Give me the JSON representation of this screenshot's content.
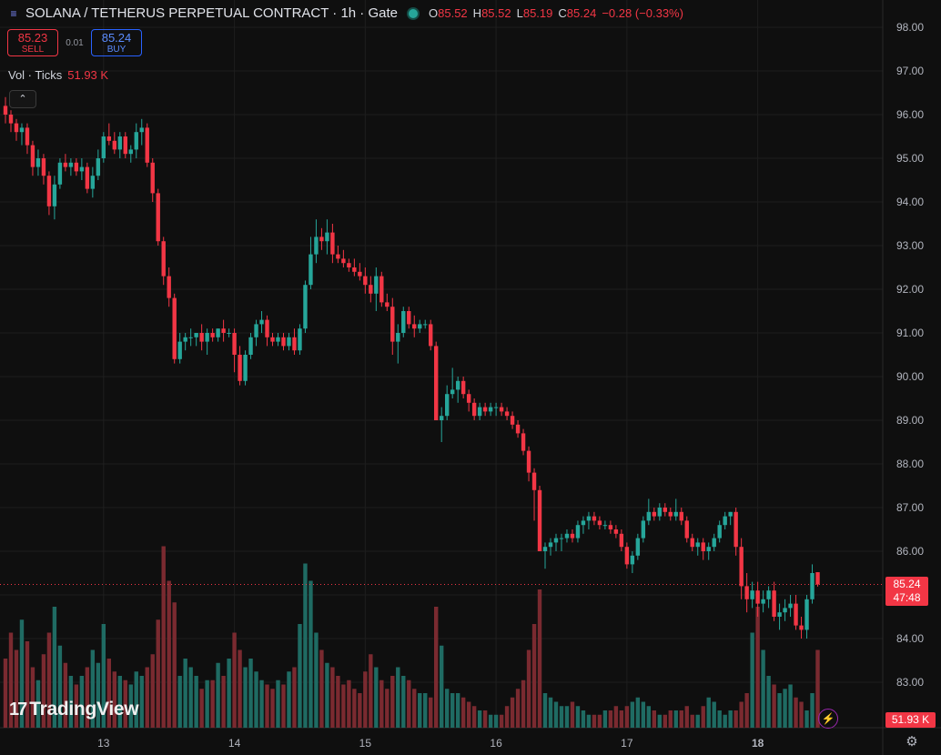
{
  "header": {
    "title": "SOLANA / TETHERUS PERPETUAL CONTRACT · 1h · Gate",
    "open_label": "O",
    "open": "85.52",
    "high_label": "H",
    "high": "85.52",
    "low_label": "L",
    "low": "85.19",
    "close_label": "C",
    "close": "85.24",
    "change": "−0.28 (−0.33%)"
  },
  "trade": {
    "sell_price": "85.23",
    "sell_label": "SELL",
    "spread": "0.01",
    "buy_price": "85.24",
    "buy_label": "BUY"
  },
  "volume_indicator": {
    "label": "Vol · Ticks",
    "value": "51.93 K"
  },
  "price_badge": {
    "price": "85.24",
    "countdown": "47:48"
  },
  "volume_badge": "51.93 K",
  "logo": {
    "mark": "17",
    "text": "TradingView"
  },
  "colors": {
    "up": "#26a69a",
    "down": "#f23645",
    "background": "#0f0f0f",
    "grid": "#1e1e1e"
  },
  "icons": {
    "symbol": "list-icon",
    "status": "market-open-dot",
    "collapse": "chevron-up-icon",
    "bolt": "lightning-icon",
    "settings": "gear-icon"
  },
  "chart_data": {
    "type": "candlestick",
    "y_range": [
      82.5,
      98.5
    ],
    "y_ticks": [
      "98.00",
      "97.00",
      "96.00",
      "95.00",
      "94.00",
      "93.00",
      "92.00",
      "91.00",
      "90.00",
      "89.00",
      "88.00",
      "87.00",
      "86.00",
      "85.00",
      "84.00",
      "83.00"
    ],
    "x_ticks": [
      {
        "label": "13",
        "index": 18
      },
      {
        "label": "14",
        "index": 42
      },
      {
        "label": "15",
        "index": 66
      },
      {
        "label": "16",
        "index": 90
      },
      {
        "label": "17",
        "index": 114
      },
      {
        "label": "18",
        "index": 138
      }
    ],
    "last_price": 85.24,
    "candles": [
      [
        96.2,
        96.4,
        95.8,
        96.0
      ],
      [
        96.0,
        96.1,
        95.6,
        95.8
      ],
      [
        95.8,
        95.9,
        95.4,
        95.6
      ],
      [
        95.6,
        95.8,
        95.3,
        95.7
      ],
      [
        95.7,
        95.8,
        95.1,
        95.3
      ],
      [
        95.3,
        95.4,
        94.6,
        94.8
      ],
      [
        94.8,
        95.2,
        94.6,
        95.0
      ],
      [
        95.0,
        95.1,
        94.4,
        94.6
      ],
      [
        94.6,
        94.7,
        93.7,
        93.9
      ],
      [
        93.9,
        94.6,
        93.6,
        94.4
      ],
      [
        94.4,
        95.0,
        94.3,
        94.9
      ],
      [
        94.9,
        95.1,
        94.7,
        94.8
      ],
      [
        94.8,
        95.0,
        94.6,
        94.9
      ],
      [
        94.9,
        95.0,
        94.6,
        94.7
      ],
      [
        94.7,
        95.0,
        94.5,
        94.8
      ],
      [
        94.8,
        94.9,
        94.2,
        94.3
      ],
      [
        94.3,
        94.8,
        94.1,
        94.6
      ],
      [
        94.6,
        95.2,
        94.5,
        95.0
      ],
      [
        95.0,
        95.6,
        94.9,
        95.5
      ],
      [
        95.5,
        95.8,
        95.3,
        95.4
      ],
      [
        95.4,
        95.6,
        95.1,
        95.2
      ],
      [
        95.2,
        95.6,
        95.0,
        95.5
      ],
      [
        95.5,
        95.6,
        95.0,
        95.1
      ],
      [
        95.1,
        95.3,
        94.9,
        95.2
      ],
      [
        95.2,
        95.8,
        95.0,
        95.6
      ],
      [
        95.6,
        95.9,
        95.3,
        95.7
      ],
      [
        95.7,
        95.8,
        94.8,
        94.9
      ],
      [
        94.9,
        95.0,
        94.0,
        94.2
      ],
      [
        94.2,
        94.3,
        93.0,
        93.1
      ],
      [
        93.1,
        93.2,
        92.1,
        92.3
      ],
      [
        92.3,
        92.5,
        91.6,
        91.8
      ],
      [
        91.8,
        91.9,
        90.3,
        90.4
      ],
      [
        90.4,
        91.0,
        90.3,
        90.8
      ],
      [
        90.8,
        91.0,
        90.6,
        90.9
      ],
      [
        90.9,
        91.1,
        90.7,
        90.9
      ],
      [
        90.9,
        91.0,
        90.7,
        91.0
      ],
      [
        91.0,
        91.2,
        90.6,
        90.8
      ],
      [
        90.8,
        91.1,
        90.5,
        91.0
      ],
      [
        91.0,
        91.1,
        90.8,
        90.9
      ],
      [
        90.9,
        91.1,
        90.8,
        91.1
      ],
      [
        91.1,
        91.3,
        90.8,
        91.0
      ],
      [
        91.0,
        91.1,
        90.9,
        91.0
      ],
      [
        91.0,
        91.1,
        90.1,
        90.5
      ],
      [
        90.5,
        90.7,
        89.8,
        89.9
      ],
      [
        89.9,
        90.6,
        89.8,
        90.5
      ],
      [
        90.5,
        91.0,
        90.4,
        90.9
      ],
      [
        90.9,
        91.3,
        90.7,
        91.2
      ],
      [
        91.2,
        91.5,
        91.0,
        91.3
      ],
      [
        91.3,
        91.4,
        90.7,
        90.9
      ],
      [
        90.9,
        91.0,
        90.7,
        90.8
      ],
      [
        90.8,
        91.0,
        90.7,
        90.9
      ],
      [
        90.9,
        91.0,
        90.6,
        90.7
      ],
      [
        90.7,
        91.0,
        90.6,
        90.9
      ],
      [
        90.9,
        91.1,
        90.5,
        90.6
      ],
      [
        90.6,
        91.2,
        90.5,
        91.1
      ],
      [
        91.1,
        92.2,
        91.0,
        92.1
      ],
      [
        92.1,
        93.2,
        92.0,
        92.8
      ],
      [
        92.8,
        93.6,
        92.6,
        93.2
      ],
      [
        93.2,
        93.4,
        92.9,
        93.1
      ],
      [
        93.1,
        93.6,
        92.8,
        93.3
      ],
      [
        93.3,
        93.5,
        92.6,
        92.8
      ],
      [
        92.8,
        93.0,
        92.6,
        92.7
      ],
      [
        92.7,
        92.9,
        92.5,
        92.6
      ],
      [
        92.6,
        92.7,
        92.4,
        92.5
      ],
      [
        92.5,
        92.7,
        92.3,
        92.4
      ],
      [
        92.4,
        92.6,
        92.2,
        92.3
      ],
      [
        92.3,
        92.5,
        91.9,
        92.1
      ],
      [
        92.1,
        92.3,
        91.7,
        91.9
      ],
      [
        91.9,
        92.5,
        91.5,
        92.3
      ],
      [
        92.3,
        92.4,
        91.6,
        91.7
      ],
      [
        91.7,
        91.9,
        91.5,
        91.6
      ],
      [
        91.6,
        91.8,
        90.5,
        90.8
      ],
      [
        90.8,
        91.2,
        90.3,
        91.0
      ],
      [
        91.0,
        91.6,
        90.9,
        91.5
      ],
      [
        91.5,
        91.6,
        91.1,
        91.2
      ],
      [
        91.2,
        91.4,
        90.9,
        91.1
      ],
      [
        91.1,
        91.3,
        91.0,
        91.2
      ],
      [
        91.2,
        91.3,
        91.1,
        91.2
      ],
      [
        91.2,
        91.3,
        90.6,
        90.7
      ],
      [
        90.7,
        90.8,
        89.0,
        89.0
      ],
      [
        89.0,
        89.3,
        88.5,
        89.1
      ],
      [
        89.1,
        89.8,
        89.0,
        89.6
      ],
      [
        89.6,
        90.2,
        89.5,
        89.7
      ],
      [
        89.7,
        90.0,
        89.4,
        89.9
      ],
      [
        89.9,
        90.0,
        89.5,
        89.6
      ],
      [
        89.6,
        89.7,
        89.2,
        89.4
      ],
      [
        89.4,
        89.5,
        89.0,
        89.1
      ],
      [
        89.1,
        89.4,
        89.0,
        89.3
      ],
      [
        89.3,
        89.4,
        89.1,
        89.2
      ],
      [
        89.2,
        89.4,
        89.1,
        89.3
      ],
      [
        89.3,
        89.4,
        89.1,
        89.3
      ],
      [
        89.3,
        89.4,
        89.1,
        89.2
      ],
      [
        89.2,
        89.3,
        89.0,
        89.1
      ],
      [
        89.1,
        89.2,
        88.8,
        88.9
      ],
      [
        88.9,
        89.0,
        88.6,
        88.7
      ],
      [
        88.7,
        88.8,
        88.2,
        88.3
      ],
      [
        88.3,
        88.4,
        87.6,
        87.8
      ],
      [
        87.8,
        87.9,
        86.7,
        87.4
      ],
      [
        87.4,
        87.5,
        86.0,
        86.0
      ],
      [
        86.0,
        86.2,
        85.6,
        86.1
      ],
      [
        86.1,
        86.3,
        85.9,
        86.2
      ],
      [
        86.2,
        86.4,
        86.0,
        86.3
      ],
      [
        86.3,
        86.4,
        86.0,
        86.3
      ],
      [
        86.3,
        86.5,
        86.2,
        86.4
      ],
      [
        86.4,
        86.5,
        86.2,
        86.3
      ],
      [
        86.3,
        86.7,
        86.2,
        86.6
      ],
      [
        86.6,
        86.8,
        86.4,
        86.7
      ],
      [
        86.7,
        86.9,
        86.5,
        86.8
      ],
      [
        86.8,
        86.9,
        86.6,
        86.7
      ],
      [
        86.7,
        86.8,
        86.5,
        86.6
      ],
      [
        86.6,
        86.7,
        86.5,
        86.6
      ],
      [
        86.6,
        86.7,
        86.4,
        86.5
      ],
      [
        86.5,
        86.6,
        86.3,
        86.4
      ],
      [
        86.4,
        86.5,
        86.0,
        86.1
      ],
      [
        86.1,
        86.2,
        85.6,
        85.7
      ],
      [
        85.7,
        86.0,
        85.5,
        85.9
      ],
      [
        85.9,
        86.4,
        85.8,
        86.3
      ],
      [
        86.3,
        86.8,
        86.2,
        86.7
      ],
      [
        86.7,
        87.2,
        86.6,
        86.9
      ],
      [
        86.9,
        87.0,
        86.7,
        86.8
      ],
      [
        86.8,
        87.1,
        86.7,
        87.0
      ],
      [
        87.0,
        87.1,
        86.8,
        86.9
      ],
      [
        86.9,
        87.0,
        86.7,
        86.8
      ],
      [
        86.8,
        87.2,
        86.7,
        86.9
      ],
      [
        86.9,
        87.0,
        86.6,
        86.7
      ],
      [
        86.7,
        86.8,
        86.2,
        86.3
      ],
      [
        86.3,
        86.4,
        86.0,
        86.1
      ],
      [
        86.1,
        86.3,
        85.9,
        86.2
      ],
      [
        86.2,
        86.3,
        85.8,
        86.0
      ],
      [
        86.0,
        86.2,
        85.8,
        86.1
      ],
      [
        86.1,
        86.4,
        86.0,
        86.3
      ],
      [
        86.3,
        86.7,
        86.2,
        86.6
      ],
      [
        86.6,
        86.9,
        86.5,
        86.8
      ],
      [
        86.8,
        86.9,
        86.6,
        86.9
      ],
      [
        86.9,
        87.0,
        85.9,
        86.1
      ],
      [
        86.1,
        86.3,
        84.9,
        85.2
      ],
      [
        85.2,
        85.5,
        84.6,
        84.9
      ],
      [
        84.9,
        85.3,
        84.7,
        85.1
      ],
      [
        85.1,
        85.3,
        84.5,
        84.8
      ],
      [
        84.8,
        85.1,
        84.6,
        84.9
      ],
      [
        84.9,
        85.2,
        84.7,
        85.1
      ],
      [
        85.1,
        85.3,
        84.4,
        84.5
      ],
      [
        84.5,
        84.8,
        84.2,
        84.6
      ],
      [
        84.6,
        84.9,
        84.4,
        84.7
      ],
      [
        84.7,
        85.0,
        84.5,
        84.8
      ],
      [
        84.8,
        85.0,
        84.2,
        84.3
      ],
      [
        84.3,
        84.5,
        84.0,
        84.2
      ],
      [
        84.2,
        85.0,
        84.0,
        84.9
      ],
      [
        84.9,
        85.7,
        84.8,
        85.5
      ],
      [
        85.52,
        85.52,
        85.19,
        85.24
      ]
    ],
    "volumes": [
      16,
      22,
      18,
      25,
      20,
      14,
      11,
      17,
      22,
      28,
      19,
      15,
      12,
      10,
      12,
      14,
      18,
      15,
      24,
      16,
      13,
      12,
      11,
      10,
      13,
      12,
      14,
      17,
      25,
      42,
      34,
      29,
      12,
      16,
      14,
      12,
      9,
      11,
      11,
      15,
      12,
      16,
      22,
      18,
      14,
      16,
      13,
      11,
      10,
      9,
      11,
      10,
      13,
      14,
      24,
      38,
      34,
      22,
      18,
      15,
      14,
      12,
      10,
      11,
      9,
      8,
      13,
      17,
      14,
      11,
      9,
      12,
      14,
      12,
      11,
      9,
      8,
      8,
      7,
      28,
      19,
      9,
      8,
      8,
      7,
      6,
      5,
      4,
      4,
      3,
      3,
      3,
      5,
      7,
      9,
      11,
      18,
      24,
      32,
      8,
      7,
      6,
      5,
      5,
      6,
      5,
      4,
      3,
      3,
      3,
      4,
      4,
      5,
      4,
      5,
      6,
      7,
      6,
      5,
      4,
      3,
      3,
      4,
      4,
      4,
      5,
      3,
      3,
      5,
      7,
      6,
      4,
      3,
      4,
      4,
      6,
      8,
      22,
      28,
      18,
      12,
      10,
      8,
      9,
      10,
      7,
      6,
      4,
      8,
      18
    ]
  }
}
